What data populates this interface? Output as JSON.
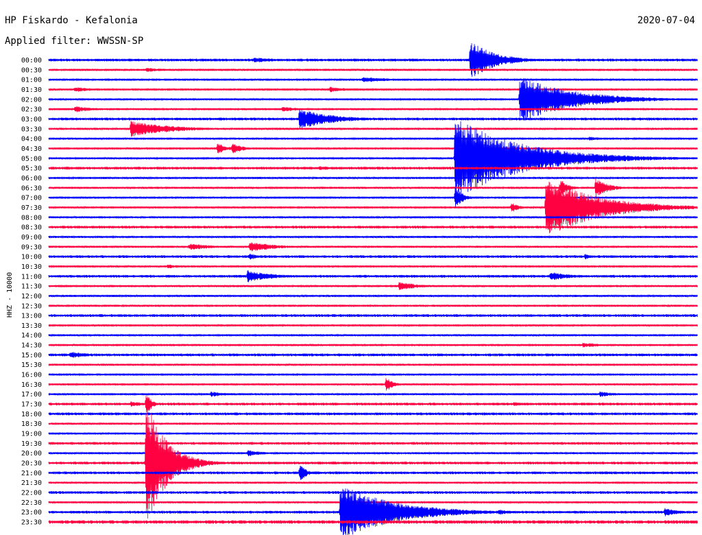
{
  "header": {
    "station": "HP Fiskardo - Kefalonia",
    "date": "2020-07-04",
    "filter": "Applied filter: WWSSN-SP",
    "channel_label": "HHZ - 10000"
  },
  "colors": {
    "even_rows": "#0000ff",
    "odd_rows": "#ff0040"
  },
  "chart_data": {
    "type": "line",
    "title": "HP Fiskardo - Kefalonia",
    "ylabel": "HHZ - 10000",
    "row_labels": [
      "00:00",
      "00:30",
      "01:00",
      "01:30",
      "02:00",
      "02:30",
      "03:00",
      "03:30",
      "04:00",
      "04:30",
      "05:00",
      "05:30",
      "06:00",
      "06:30",
      "07:00",
      "07:30",
      "08:00",
      "08:30",
      "09:00",
      "09:30",
      "10:00",
      "10:30",
      "11:00",
      "11:30",
      "12:00",
      "12:30",
      "13:00",
      "13:30",
      "14:00",
      "14:30",
      "15:00",
      "15:30",
      "16:00",
      "16:30",
      "17:00",
      "17:30",
      "18:00",
      "18:30",
      "19:00",
      "19:30",
      "20:00",
      "20:30",
      "21:00",
      "21:30",
      "22:00",
      "22:30",
      "23:00",
      "23:30"
    ],
    "row_duration_minutes": 30,
    "noise": [
      2,
      1.5,
      1.5,
      1.5,
      1.5,
      1.5,
      2,
      1.5,
      1.5,
      1.5,
      1.5,
      2,
      1.5,
      1.5,
      1.5,
      1.5,
      1.5,
      2,
      1.5,
      1.5,
      2,
      1.5,
      2,
      1.5,
      1.5,
      1.5,
      2,
      1.5,
      1.5,
      1.5,
      2,
      1.5,
      1.5,
      1.5,
      1.5,
      2,
      2,
      1.5,
      1.5,
      2,
      1.5,
      2,
      2,
      1.5,
      2,
      1.5,
      2,
      2.5
    ],
    "events": [
      {
        "row": 0,
        "minute": 9.5,
        "amp": 4,
        "dur": 2
      },
      {
        "row": 0,
        "minute": 19.5,
        "amp": 30,
        "dur": 1.8
      },
      {
        "row": 1,
        "minute": 4.5,
        "amp": 3,
        "dur": 2
      },
      {
        "row": 1,
        "minute": 27,
        "amp": 2,
        "dur": 1.5
      },
      {
        "row": 2,
        "minute": 14.5,
        "amp": 4,
        "dur": 2.5
      },
      {
        "row": 3,
        "minute": 1.2,
        "amp": 4,
        "dur": 1.5
      },
      {
        "row": 3,
        "minute": 13,
        "amp": 4,
        "dur": 1.5
      },
      {
        "row": 4,
        "minute": 21.8,
        "amp": 34,
        "dur": 4
      },
      {
        "row": 5,
        "minute": 1.2,
        "amp": 5,
        "dur": 1.5
      },
      {
        "row": 5,
        "minute": 10.8,
        "amp": 4,
        "dur": 1.5
      },
      {
        "row": 6,
        "minute": 11.6,
        "amp": 15,
        "dur": 2.5
      },
      {
        "row": 7,
        "minute": 3.8,
        "amp": 12,
        "dur": 3
      },
      {
        "row": 8,
        "minute": 25,
        "amp": 3,
        "dur": 1.5
      },
      {
        "row": 9,
        "minute": 7.8,
        "amp": 8,
        "dur": 0.8
      },
      {
        "row": 9,
        "minute": 8.5,
        "amp": 8,
        "dur": 0.8
      },
      {
        "row": 10,
        "minute": 18.8,
        "amp": 60,
        "dur": 5
      },
      {
        "row": 11,
        "minute": 12.5,
        "amp": 3,
        "dur": 2
      },
      {
        "row": 13,
        "minute": 23.7,
        "amp": 12,
        "dur": 0.6
      },
      {
        "row": 13,
        "minute": 25.3,
        "amp": 14,
        "dur": 1
      },
      {
        "row": 14,
        "minute": 18.8,
        "amp": 20,
        "dur": 0.5
      },
      {
        "row": 15,
        "minute": 21.4,
        "amp": 8,
        "dur": 0.6
      },
      {
        "row": 15,
        "minute": 23,
        "amp": 44,
        "dur": 4
      },
      {
        "row": 15,
        "minute": 27.5,
        "amp": 4,
        "dur": 1.5
      },
      {
        "row": 19,
        "minute": 6.5,
        "amp": 5,
        "dur": 2
      },
      {
        "row": 19,
        "minute": 9.3,
        "amp": 9,
        "dur": 1.8
      },
      {
        "row": 20,
        "minute": 9.3,
        "amp": 6,
        "dur": 0.5
      },
      {
        "row": 20,
        "minute": 24.8,
        "amp": 5,
        "dur": 0.4
      },
      {
        "row": 21,
        "minute": 5.5,
        "amp": 3,
        "dur": 1.5
      },
      {
        "row": 22,
        "minute": 9.2,
        "amp": 9,
        "dur": 2
      },
      {
        "row": 22,
        "minute": 23.2,
        "amp": 7,
        "dur": 1.5
      },
      {
        "row": 23,
        "minute": 16.2,
        "amp": 7,
        "dur": 1.5
      },
      {
        "row": 29,
        "minute": 24.7,
        "amp": 4,
        "dur": 1.5
      },
      {
        "row": 30,
        "minute": 1,
        "amp": 5,
        "dur": 1.5
      },
      {
        "row": 33,
        "minute": 15.6,
        "amp": 12,
        "dur": 0.5
      },
      {
        "row": 34,
        "minute": 7.5,
        "amp": 4,
        "dur": 1.5
      },
      {
        "row": 34,
        "minute": 25.5,
        "amp": 4,
        "dur": 1.5
      },
      {
        "row": 35,
        "minute": 3.8,
        "amp": 4,
        "dur": 1.5
      },
      {
        "row": 35,
        "minute": 21.5,
        "amp": 3,
        "dur": 1.5
      },
      {
        "row": 35,
        "minute": 4.5,
        "amp": 18,
        "dur": 0.4
      },
      {
        "row": 40,
        "minute": 9.2,
        "amp": 5,
        "dur": 1.2
      },
      {
        "row": 41,
        "minute": 4.5,
        "amp": 100,
        "dur": 1.5
      },
      {
        "row": 42,
        "minute": 11.6,
        "amp": 14,
        "dur": 0.5
      },
      {
        "row": 46,
        "minute": 13.5,
        "amp": 42,
        "dur": 4
      },
      {
        "row": 46,
        "minute": 20.8,
        "amp": 4,
        "dur": 1.5
      },
      {
        "row": 46,
        "minute": 28.5,
        "amp": 6,
        "dur": 1.2
      }
    ]
  }
}
